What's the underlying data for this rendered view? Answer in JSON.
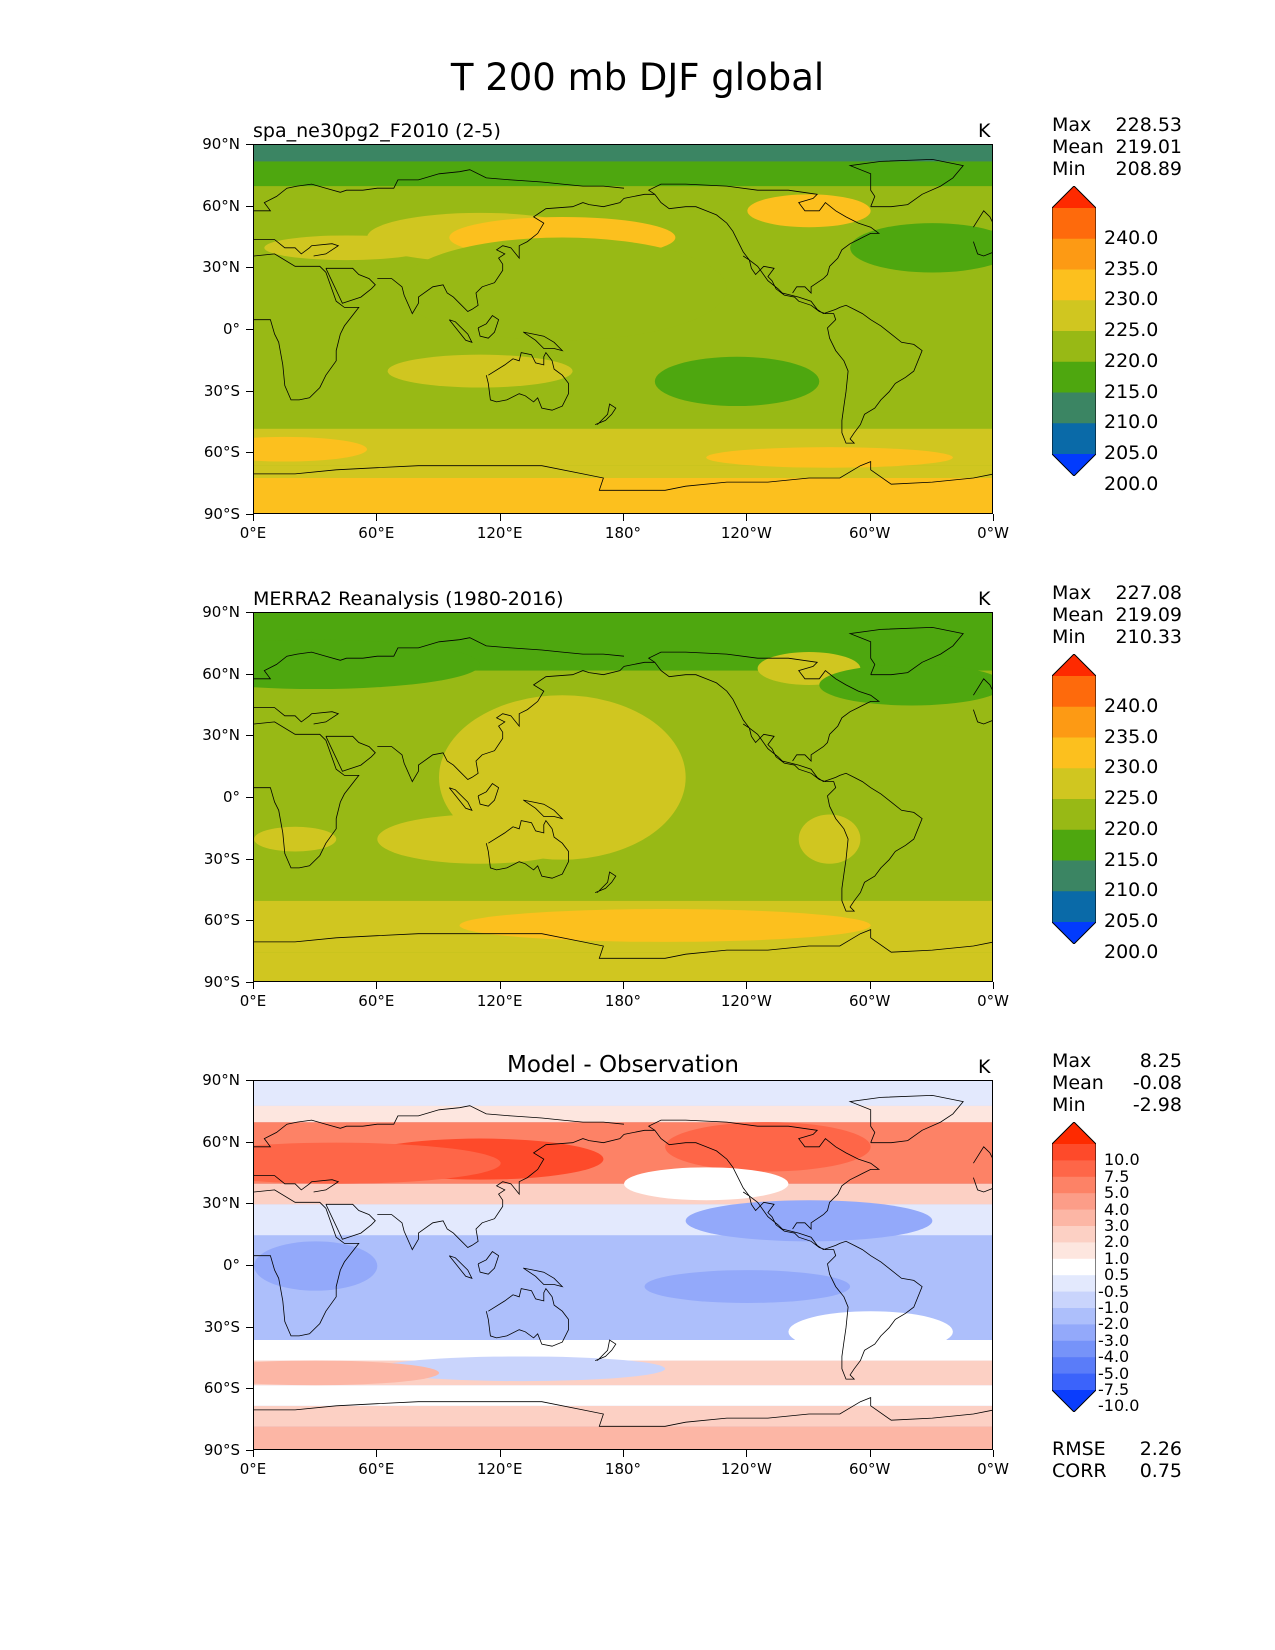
{
  "title": "T 200 mb DJF global",
  "axes": {
    "lat_labels": [
      "90°N",
      "60°N",
      "30°N",
      "0°",
      "30°S",
      "60°S",
      "90°S"
    ],
    "lon_labels": [
      "0°E",
      "60°E",
      "120°E",
      "180°",
      "120°W",
      "60°W",
      "0°W"
    ]
  },
  "panels": [
    {
      "subtitle": "spa_ne30pg2_F2010 (2-5)",
      "units": "K",
      "stats": {
        "max_label": "Max",
        "max": "228.53",
        "mean_label": "Mean",
        "mean": "219.01",
        "min_label": "Min",
        "min": "208.89"
      },
      "colorbar": {
        "labels": [
          "240.0",
          "235.0",
          "230.0",
          "225.0",
          "220.0",
          "215.0",
          "210.0",
          "205.0",
          "200.0"
        ],
        "colors": [
          "#fe2a00",
          "#fe6a0c",
          "#fd9a14",
          "#fcc01e",
          "#d0c620",
          "#98b915",
          "#4ea70f",
          "#3b8563",
          "#0a6aa8",
          "#023bfd"
        ]
      }
    },
    {
      "subtitle": "MERRA2 Reanalysis (1980-2016)",
      "units": "K",
      "stats": {
        "max_label": "Max",
        "max": "227.08",
        "mean_label": "Mean",
        "mean": "219.09",
        "min_label": "Min",
        "min": "210.33"
      },
      "colorbar": {
        "labels": [
          "240.0",
          "235.0",
          "230.0",
          "225.0",
          "220.0",
          "215.0",
          "210.0",
          "205.0",
          "200.0"
        ],
        "colors": [
          "#fe2a00",
          "#fe6a0c",
          "#fd9a14",
          "#fcc01e",
          "#d0c620",
          "#98b915",
          "#4ea70f",
          "#3b8563",
          "#0a6aa8",
          "#023bfd"
        ]
      }
    },
    {
      "subtitle": "Model - Observation",
      "units": "K",
      "stats": {
        "max_label": "Max",
        "max": "8.25",
        "mean_label": "Mean",
        "mean": "-0.08",
        "min_label": "Min",
        "min": "-2.98"
      },
      "colorbar": {
        "labels": [
          "10.0",
          "7.5",
          "5.0",
          "4.0",
          "3.0",
          "2.0",
          "1.0",
          "0.5",
          "-0.5",
          "-1.0",
          "-2.0",
          "-3.0",
          "-4.0",
          "-5.0",
          "-7.5",
          "-10.0"
        ],
        "colors": [
          "#fe2a00",
          "#fe4a2a",
          "#fe6648",
          "#fd8266",
          "#fc9d88",
          "#fcb6a5",
          "#fcd0c4",
          "#fde6df",
          "#ffffff",
          "#e3e9fd",
          "#c9d4fc",
          "#adbffb",
          "#93a9fa",
          "#7693f9",
          "#5a7cf9",
          "#3b63fb",
          "#0a3dfd"
        ]
      },
      "rmse_label": "RMSE",
      "rmse": "2.26",
      "corr_label": "CORR",
      "corr": "0.75"
    }
  ]
}
